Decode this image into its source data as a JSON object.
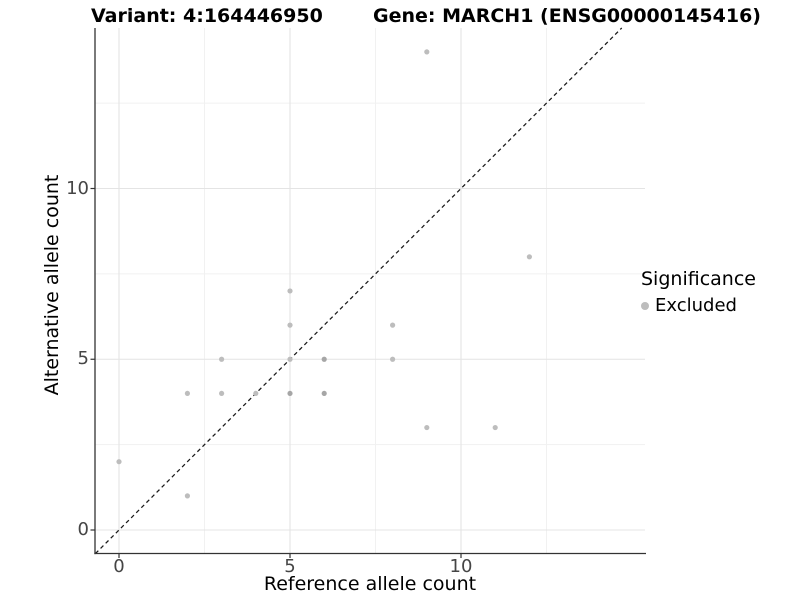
{
  "chart_data": {
    "type": "scatter",
    "titles": {
      "left": "Variant: 4:164446950",
      "right": "Gene: MARCH1 (ENSG00000145416)"
    },
    "xlabel": "Reference allele count",
    "ylabel": "Alternative allele count",
    "x_breaks": [
      0,
      5,
      10
    ],
    "x_tick_labels": [
      "0",
      "5",
      "10"
    ],
    "x_minor_breaks": [
      2.5,
      7.5,
      12.5
    ],
    "y_breaks": [
      0,
      5,
      10
    ],
    "y_tick_labels": [
      "0",
      "5",
      "10"
    ],
    "y_minor_breaks": [
      2.5,
      7.5,
      12.5
    ],
    "xlim": [
      -0.702,
      15.38
    ],
    "ylim": [
      -0.688,
      14.7
    ],
    "grid": {
      "major_color": "#e4e4e4",
      "minor_color": "#f1f1f1"
    },
    "axis": {
      "line_color": "#333333",
      "tick_color": "#333333",
      "tick_label_color": "#454545"
    },
    "identity_line": {
      "slope": 1,
      "intercept": 0,
      "style": "dashed",
      "color": "#1a1a1a"
    },
    "point_style": {
      "radius": 2.6,
      "color": "#bdbdbd",
      "overlap_color": "#a6a6a6"
    },
    "points": [
      {
        "x": 0,
        "y": 2
      },
      {
        "x": 2,
        "y": 1
      },
      {
        "x": 2,
        "y": 4
      },
      {
        "x": 3,
        "y": 4
      },
      {
        "x": 3,
        "y": 5
      },
      {
        "x": 4,
        "y": 4
      },
      {
        "x": 5,
        "y": 4,
        "overlap": true
      },
      {
        "x": 5,
        "y": 5
      },
      {
        "x": 5,
        "y": 6
      },
      {
        "x": 5,
        "y": 7
      },
      {
        "x": 6,
        "y": 4,
        "overlap": true
      },
      {
        "x": 6,
        "y": 5,
        "overlap": true
      },
      {
        "x": 8,
        "y": 5
      },
      {
        "x": 8,
        "y": 6
      },
      {
        "x": 9,
        "y": 3
      },
      {
        "x": 9,
        "y": 14
      },
      {
        "x": 11,
        "y": 3
      },
      {
        "x": 12,
        "y": 8
      }
    ],
    "legend": {
      "title": "Significance",
      "position": "right",
      "items": [
        {
          "label": "Excluded",
          "color": "#bdbdbd"
        }
      ]
    }
  }
}
